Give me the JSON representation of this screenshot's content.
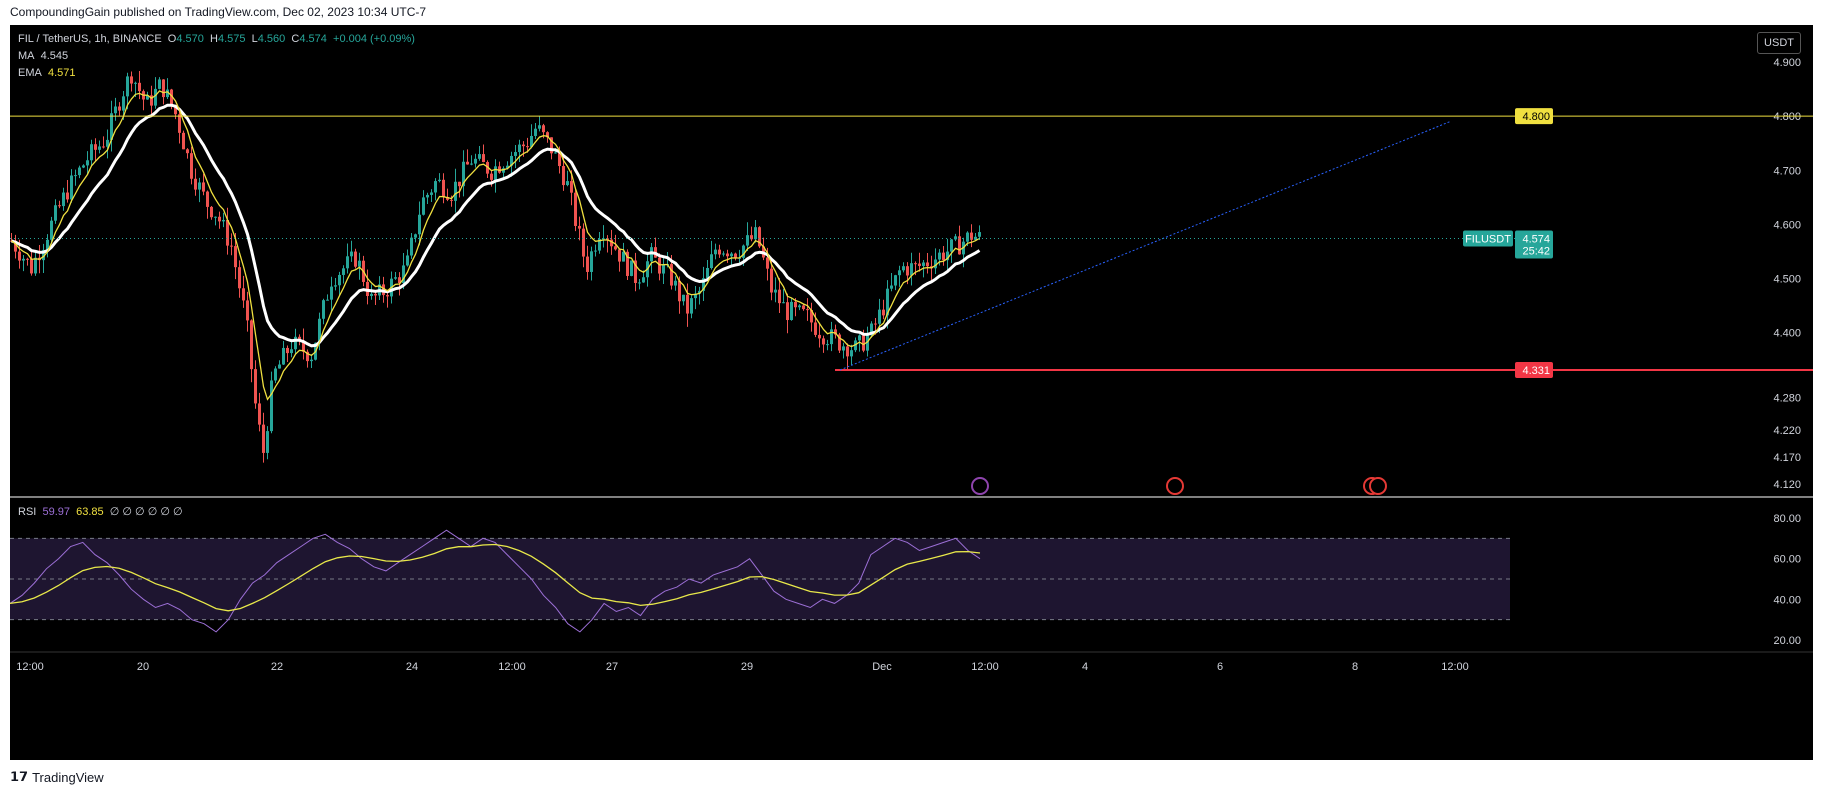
{
  "header": {
    "published": "CompoundingGain published on TradingView.com, Dec 02, 2023 10:34 UTC-7"
  },
  "legend": {
    "symbol": "FIL / TetherUS, 1h, BINANCE",
    "o_label": "O",
    "o_value": "4.570",
    "h_label": "H",
    "h_value": "4.575",
    "l_label": "L",
    "l_value": "4.560",
    "c_label": "C",
    "c_value": "4.574",
    "change": "+0.004 (+0.09%)",
    "ma_label": "MA",
    "ma_value": "4.545",
    "ema_label": "EMA",
    "ema_value": "4.571"
  },
  "currency_button": "USDT",
  "rsi_legend": {
    "label": "RSI",
    "value1": "59.97",
    "value2": "63.85",
    "extras": "∅ ∅ ∅ ∅ ∅ ∅"
  },
  "footer": {
    "brand": "TradingView"
  },
  "colors": {
    "up": "#26a69a",
    "down": "#ef5350",
    "ema": "#f0e040",
    "ma": "#ffffff",
    "rsi": "#9c6fd6",
    "rsi_ma": "#e8e84a",
    "resistance": "#f0e040",
    "support": "#f23645",
    "trend": "#2962ff"
  },
  "chart_data": [
    {
      "type": "candlestick",
      "title": "FIL / TetherUS, 1h, BINANCE",
      "price_ticks": [
        "4.900",
        "4.800",
        "4.700",
        "4.600",
        "4.500",
        "4.400",
        "4.280",
        "4.220",
        "4.170",
        "4.120"
      ],
      "time_ticks": [
        "12:00",
        "20",
        "22",
        "24",
        "12:00",
        "27",
        "29",
        "Dec",
        "12:00",
        "4",
        "6",
        "8",
        "12:00"
      ],
      "ylim": [
        4.1,
        4.95
      ],
      "series": [
        {
          "name": "MA",
          "last": 4.545
        },
        {
          "name": "EMA",
          "last": 4.571
        }
      ],
      "path_points": [
        [
          0,
          4.57
        ],
        [
          20,
          4.52
        ],
        [
          40,
          4.6
        ],
        [
          55,
          4.66
        ],
        [
          75,
          4.72
        ],
        [
          95,
          4.76
        ],
        [
          110,
          4.84
        ],
        [
          120,
          4.88
        ],
        [
          135,
          4.82
        ],
        [
          150,
          4.86
        ],
        [
          165,
          4.8
        ],
        [
          180,
          4.7
        ],
        [
          195,
          4.64
        ],
        [
          205,
          4.62
        ],
        [
          220,
          4.56
        ],
        [
          235,
          4.42
        ],
        [
          245,
          4.25
        ],
        [
          252,
          4.18
        ],
        [
          262,
          4.32
        ],
        [
          280,
          4.38
        ],
        [
          300,
          4.36
        ],
        [
          320,
          4.5
        ],
        [
          345,
          4.54
        ],
        [
          360,
          4.46
        ],
        [
          375,
          4.48
        ],
        [
          395,
          4.52
        ],
        [
          410,
          4.64
        ],
        [
          425,
          4.68
        ],
        [
          440,
          4.66
        ],
        [
          460,
          4.72
        ],
        [
          480,
          4.7
        ],
        [
          500,
          4.73
        ],
        [
          515,
          4.75
        ],
        [
          525,
          4.78
        ],
        [
          540,
          4.74
        ],
        [
          555,
          4.68
        ],
        [
          565,
          4.6
        ],
        [
          575,
          4.52
        ],
        [
          590,
          4.6
        ],
        [
          610,
          4.54
        ],
        [
          625,
          4.5
        ],
        [
          640,
          4.54
        ],
        [
          660,
          4.5
        ],
        [
          675,
          4.44
        ],
        [
          690,
          4.48
        ],
        [
          705,
          4.56
        ],
        [
          725,
          4.55
        ],
        [
          745,
          4.58
        ],
        [
          760,
          4.48
        ],
        [
          775,
          4.44
        ],
        [
          795,
          4.43
        ],
        [
          810,
          4.4
        ],
        [
          830,
          4.38
        ],
        [
          845,
          4.37
        ],
        [
          860,
          4.4
        ],
        [
          875,
          4.46
        ],
        [
          890,
          4.52
        ],
        [
          905,
          4.52
        ],
        [
          925,
          4.54
        ],
        [
          945,
          4.56
        ],
        [
          960,
          4.58
        ],
        [
          970,
          4.574
        ]
      ],
      "horizontal_levels": [
        {
          "label": "4.800",
          "value": 4.8
        },
        {
          "label": "4.331",
          "value": 4.331
        }
      ],
      "last_price": {
        "symbol": "FILUSDT",
        "value": "4.574",
        "countdown": "25:42"
      }
    },
    {
      "type": "line",
      "title": "RSI",
      "ticks": [
        "80.00",
        "60.00",
        "40.00",
        "20.00"
      ],
      "ylim": [
        20,
        80
      ],
      "bands": [
        70,
        50,
        30
      ],
      "values": [
        38,
        42,
        48,
        55,
        60,
        66,
        68,
        62,
        58,
        52,
        45,
        40,
        36,
        38,
        35,
        30,
        28,
        24,
        30,
        40,
        48,
        52,
        58,
        62,
        66,
        70,
        72,
        68,
        65,
        60,
        56,
        54,
        58,
        62,
        66,
        70,
        74,
        70,
        66,
        70,
        68,
        62,
        56,
        50,
        42,
        36,
        28,
        24,
        30,
        38,
        34,
        36,
        32,
        40,
        44,
        46,
        50,
        48,
        52,
        54,
        56,
        60,
        52,
        44,
        40,
        38,
        36,
        40,
        38,
        42,
        48,
        62,
        66,
        70,
        68,
        64,
        66,
        68,
        70,
        64,
        60
      ]
    }
  ]
}
